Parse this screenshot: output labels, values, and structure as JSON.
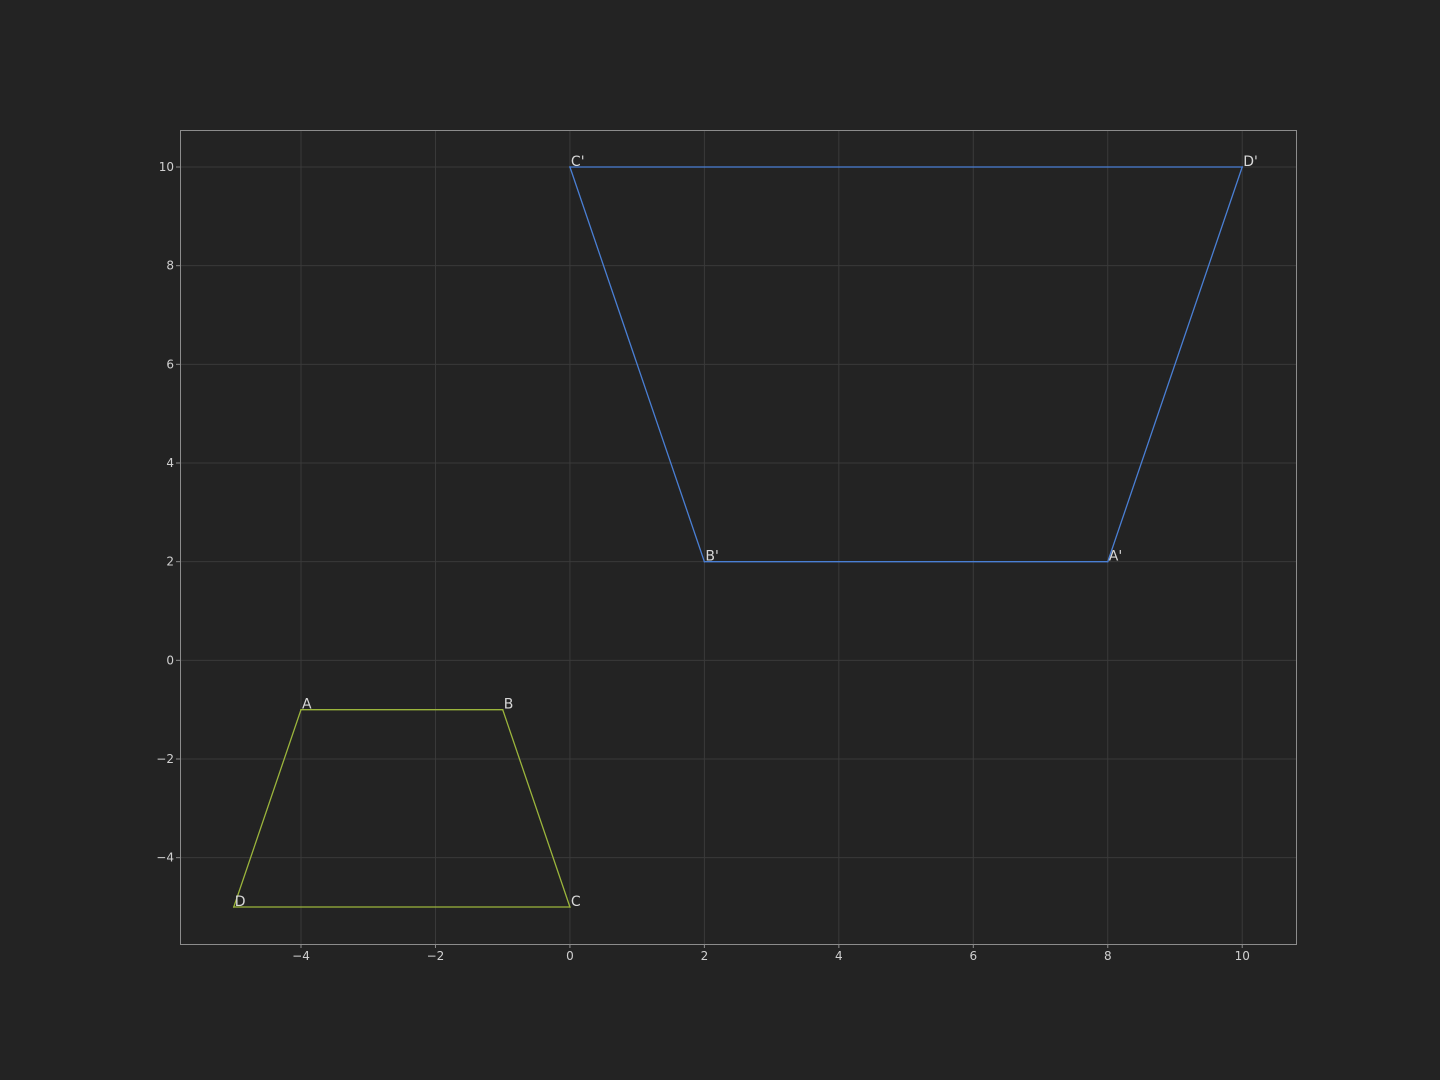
{
  "chart_data": {
    "type": "line",
    "title": "",
    "xlabel": "",
    "ylabel": "",
    "xlim": [
      -5.8,
      10.8
    ],
    "ylim": [
      -5.75,
      10.75
    ],
    "xticks": [
      -4,
      -2,
      0,
      2,
      4,
      6,
      8,
      10
    ],
    "yticks": [
      -4,
      -2,
      0,
      2,
      4,
      6,
      8,
      10
    ],
    "xtick_labels": [
      "−4",
      "−2",
      "0",
      "2",
      "4",
      "6",
      "8",
      "10"
    ],
    "ytick_labels": [
      "−4",
      "−2",
      "0",
      "2",
      "4",
      "6",
      "8",
      "10"
    ],
    "grid": true,
    "legend": "none",
    "series": [
      {
        "color": "#9bb53c",
        "closed": true,
        "points": [
          {
            "label": "A",
            "x": -4,
            "y": -1
          },
          {
            "label": "B",
            "x": -1,
            "y": -1
          },
          {
            "label": "C",
            "x": 0,
            "y": -5
          },
          {
            "label": "D",
            "x": -5,
            "y": -5
          }
        ]
      },
      {
        "color": "#4a7fd4",
        "closed": true,
        "points": [
          {
            "label": "A'",
            "x": 8,
            "y": 2
          },
          {
            "label": "B'",
            "x": 2,
            "y": 2
          },
          {
            "label": "C'",
            "x": 0,
            "y": 10
          },
          {
            "label": "D'",
            "x": 10,
            "y": 10
          }
        ]
      }
    ]
  },
  "colors": {
    "background": "#232323",
    "grid": "#3a3a3a",
    "frame": "#8c8c8c",
    "text": "#d0d0d0"
  }
}
